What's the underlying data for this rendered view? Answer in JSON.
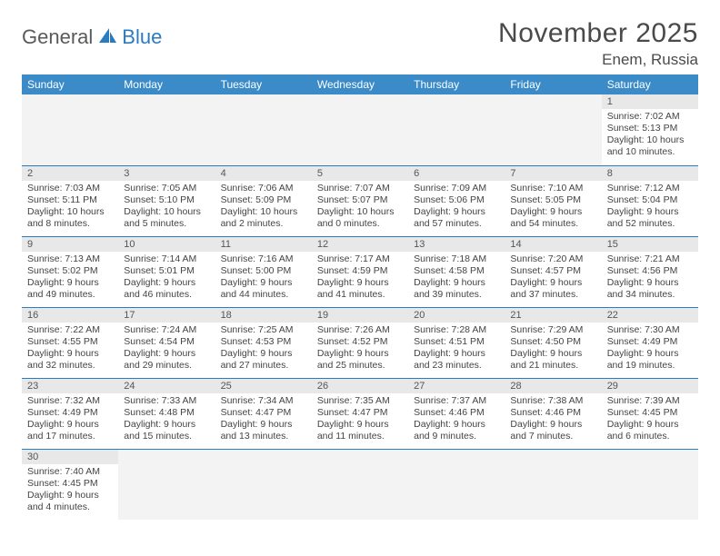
{
  "logo": {
    "text1": "General",
    "text2": "Blue"
  },
  "title": "November 2025",
  "location": "Enem, Russia",
  "colors": {
    "header_bg": "#3b8bc8",
    "header_text": "#ffffff",
    "border": "#2b7bbf",
    "daynum_bg": "#e8e8e8",
    "empty_bg": "#f3f3f3",
    "logo_gray": "#5a5a5a",
    "logo_blue": "#2b7bbf",
    "text": "#444444"
  },
  "days_of_week": [
    "Sunday",
    "Monday",
    "Tuesday",
    "Wednesday",
    "Thursday",
    "Friday",
    "Saturday"
  ],
  "weeks": [
    [
      null,
      null,
      null,
      null,
      null,
      null,
      {
        "n": "1",
        "sr": "Sunrise: 7:02 AM",
        "ss": "Sunset: 5:13 PM",
        "dl": "Daylight: 10 hours and 10 minutes."
      }
    ],
    [
      {
        "n": "2",
        "sr": "Sunrise: 7:03 AM",
        "ss": "Sunset: 5:11 PM",
        "dl": "Daylight: 10 hours and 8 minutes."
      },
      {
        "n": "3",
        "sr": "Sunrise: 7:05 AM",
        "ss": "Sunset: 5:10 PM",
        "dl": "Daylight: 10 hours and 5 minutes."
      },
      {
        "n": "4",
        "sr": "Sunrise: 7:06 AM",
        "ss": "Sunset: 5:09 PM",
        "dl": "Daylight: 10 hours and 2 minutes."
      },
      {
        "n": "5",
        "sr": "Sunrise: 7:07 AM",
        "ss": "Sunset: 5:07 PM",
        "dl": "Daylight: 10 hours and 0 minutes."
      },
      {
        "n": "6",
        "sr": "Sunrise: 7:09 AM",
        "ss": "Sunset: 5:06 PM",
        "dl": "Daylight: 9 hours and 57 minutes."
      },
      {
        "n": "7",
        "sr": "Sunrise: 7:10 AM",
        "ss": "Sunset: 5:05 PM",
        "dl": "Daylight: 9 hours and 54 minutes."
      },
      {
        "n": "8",
        "sr": "Sunrise: 7:12 AM",
        "ss": "Sunset: 5:04 PM",
        "dl": "Daylight: 9 hours and 52 minutes."
      }
    ],
    [
      {
        "n": "9",
        "sr": "Sunrise: 7:13 AM",
        "ss": "Sunset: 5:02 PM",
        "dl": "Daylight: 9 hours and 49 minutes."
      },
      {
        "n": "10",
        "sr": "Sunrise: 7:14 AM",
        "ss": "Sunset: 5:01 PM",
        "dl": "Daylight: 9 hours and 46 minutes."
      },
      {
        "n": "11",
        "sr": "Sunrise: 7:16 AM",
        "ss": "Sunset: 5:00 PM",
        "dl": "Daylight: 9 hours and 44 minutes."
      },
      {
        "n": "12",
        "sr": "Sunrise: 7:17 AM",
        "ss": "Sunset: 4:59 PM",
        "dl": "Daylight: 9 hours and 41 minutes."
      },
      {
        "n": "13",
        "sr": "Sunrise: 7:18 AM",
        "ss": "Sunset: 4:58 PM",
        "dl": "Daylight: 9 hours and 39 minutes."
      },
      {
        "n": "14",
        "sr": "Sunrise: 7:20 AM",
        "ss": "Sunset: 4:57 PM",
        "dl": "Daylight: 9 hours and 37 minutes."
      },
      {
        "n": "15",
        "sr": "Sunrise: 7:21 AM",
        "ss": "Sunset: 4:56 PM",
        "dl": "Daylight: 9 hours and 34 minutes."
      }
    ],
    [
      {
        "n": "16",
        "sr": "Sunrise: 7:22 AM",
        "ss": "Sunset: 4:55 PM",
        "dl": "Daylight: 9 hours and 32 minutes."
      },
      {
        "n": "17",
        "sr": "Sunrise: 7:24 AM",
        "ss": "Sunset: 4:54 PM",
        "dl": "Daylight: 9 hours and 29 minutes."
      },
      {
        "n": "18",
        "sr": "Sunrise: 7:25 AM",
        "ss": "Sunset: 4:53 PM",
        "dl": "Daylight: 9 hours and 27 minutes."
      },
      {
        "n": "19",
        "sr": "Sunrise: 7:26 AM",
        "ss": "Sunset: 4:52 PM",
        "dl": "Daylight: 9 hours and 25 minutes."
      },
      {
        "n": "20",
        "sr": "Sunrise: 7:28 AM",
        "ss": "Sunset: 4:51 PM",
        "dl": "Daylight: 9 hours and 23 minutes."
      },
      {
        "n": "21",
        "sr": "Sunrise: 7:29 AM",
        "ss": "Sunset: 4:50 PM",
        "dl": "Daylight: 9 hours and 21 minutes."
      },
      {
        "n": "22",
        "sr": "Sunrise: 7:30 AM",
        "ss": "Sunset: 4:49 PM",
        "dl": "Daylight: 9 hours and 19 minutes."
      }
    ],
    [
      {
        "n": "23",
        "sr": "Sunrise: 7:32 AM",
        "ss": "Sunset: 4:49 PM",
        "dl": "Daylight: 9 hours and 17 minutes."
      },
      {
        "n": "24",
        "sr": "Sunrise: 7:33 AM",
        "ss": "Sunset: 4:48 PM",
        "dl": "Daylight: 9 hours and 15 minutes."
      },
      {
        "n": "25",
        "sr": "Sunrise: 7:34 AM",
        "ss": "Sunset: 4:47 PM",
        "dl": "Daylight: 9 hours and 13 minutes."
      },
      {
        "n": "26",
        "sr": "Sunrise: 7:35 AM",
        "ss": "Sunset: 4:47 PM",
        "dl": "Daylight: 9 hours and 11 minutes."
      },
      {
        "n": "27",
        "sr": "Sunrise: 7:37 AM",
        "ss": "Sunset: 4:46 PM",
        "dl": "Daylight: 9 hours and 9 minutes."
      },
      {
        "n": "28",
        "sr": "Sunrise: 7:38 AM",
        "ss": "Sunset: 4:46 PM",
        "dl": "Daylight: 9 hours and 7 minutes."
      },
      {
        "n": "29",
        "sr": "Sunrise: 7:39 AM",
        "ss": "Sunset: 4:45 PM",
        "dl": "Daylight: 9 hours and 6 minutes."
      }
    ],
    [
      {
        "n": "30",
        "sr": "Sunrise: 7:40 AM",
        "ss": "Sunset: 4:45 PM",
        "dl": "Daylight: 9 hours and 4 minutes."
      },
      null,
      null,
      null,
      null,
      null,
      null
    ]
  ]
}
